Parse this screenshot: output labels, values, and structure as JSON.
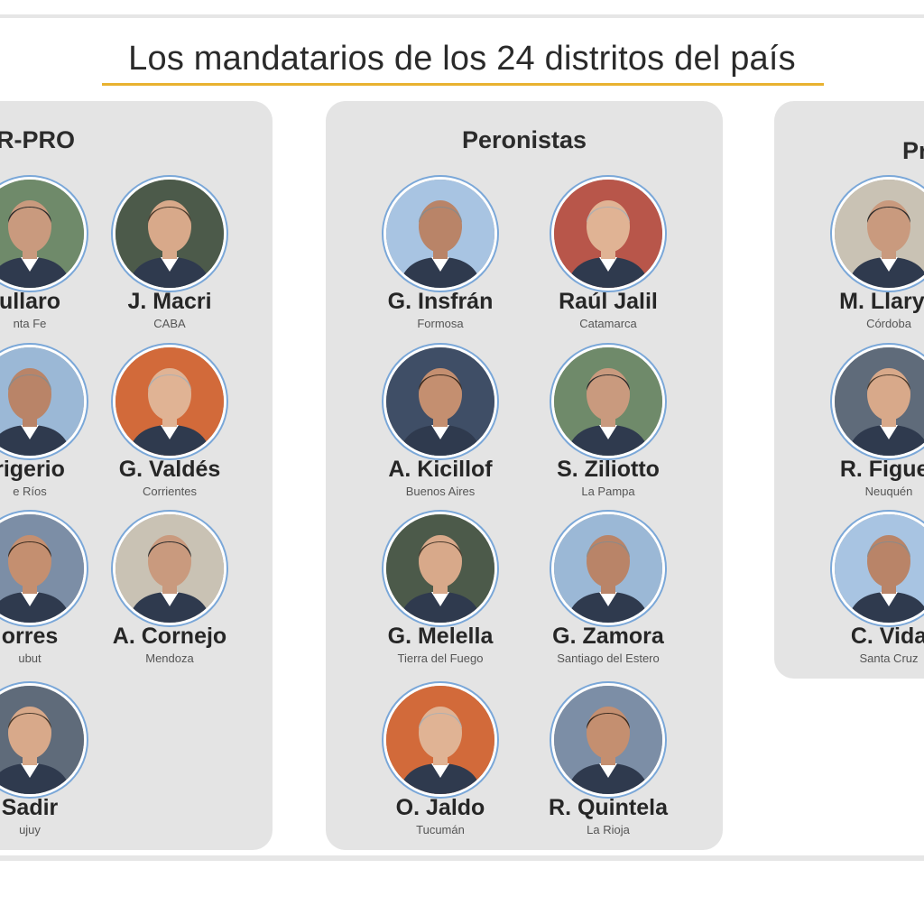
{
  "title": "Los mandatarios de los 24 distritos del país",
  "colors": {
    "panel_bg": "#e4e4e4",
    "title_underline": "#e8b230",
    "avatar_ring": "#7aa7d8"
  },
  "panels": [
    {
      "label": "R-PRO",
      "governors": [
        {
          "name": "ullaro",
          "district": "nta Fe"
        },
        {
          "name": "J. Macri",
          "district": "CABA"
        },
        {
          "name": "rigerio",
          "district": "e Ríos"
        },
        {
          "name": "G. Valdés",
          "district": "Corrientes"
        },
        {
          "name": "orres",
          "district": "ubut"
        },
        {
          "name": "A. Cornejo",
          "district": "Mendoza"
        },
        {
          "name": "Sadir",
          "district": "ujuy"
        }
      ]
    },
    {
      "label": "Peronistas",
      "governors": [
        {
          "name": "G. Insfrán",
          "district": "Formosa"
        },
        {
          "name": "Raúl Jalil",
          "district": "Catamarca"
        },
        {
          "name": "A. Kicillof",
          "district": "Buenos Aires"
        },
        {
          "name": "S. Ziliotto",
          "district": "La Pampa"
        },
        {
          "name": "G. Melella",
          "district": "Tierra del Fuego"
        },
        {
          "name": "G. Zamora",
          "district": "Santiago del Estero"
        },
        {
          "name": "O. Jaldo",
          "district": "Tucumán"
        },
        {
          "name": "R. Quintela",
          "district": "La Rioja"
        }
      ]
    },
    {
      "label": "Pr",
      "governors": [
        {
          "name": "M. Llaryo",
          "district": "Córdoba"
        },
        {
          "name": "R. Figuer",
          "district": "Neuquén"
        },
        {
          "name": "C. Vida",
          "district": "Santa Cruz"
        }
      ]
    }
  ]
}
